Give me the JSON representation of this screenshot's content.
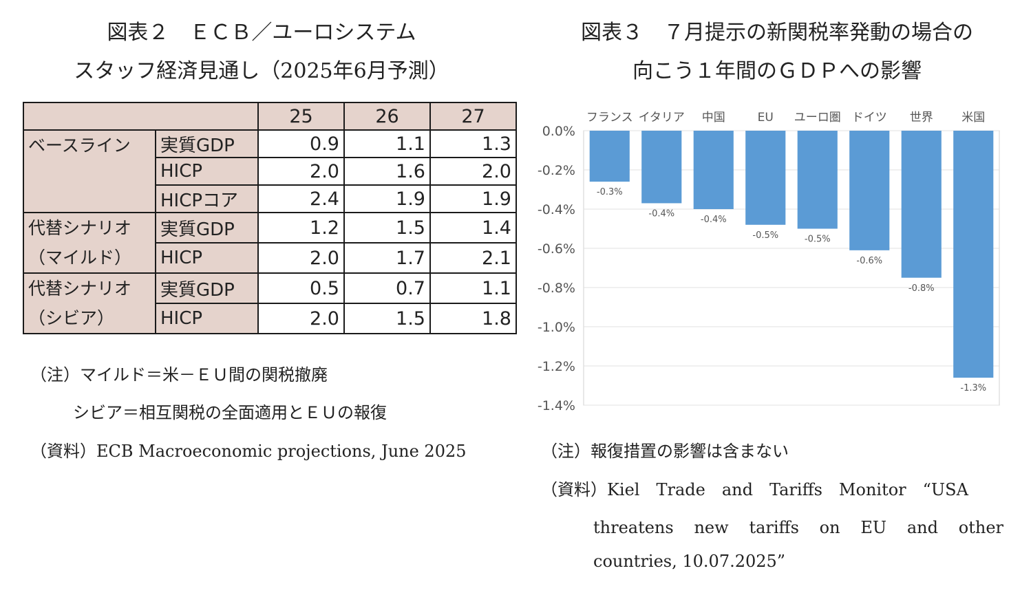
{
  "figure2": {
    "title_line1": "図表２　ＥＣＢ／ユーロシステム",
    "title_line2": "スタッフ経済見通し（2025年6月予測）",
    "header": [
      "25",
      "26",
      "27"
    ],
    "scenarios": [
      {
        "name_line1": "ベースライン",
        "name_line2": "",
        "rows": [
          {
            "indicator": "実質GDP",
            "values": [
              "0.9",
              "1.1",
              "1.3"
            ]
          },
          {
            "indicator": "HICP",
            "values": [
              "2.0",
              "1.6",
              "2.0"
            ]
          },
          {
            "indicator": "HICPコア",
            "values": [
              "2.4",
              "1.9",
              "1.9"
            ]
          }
        ]
      },
      {
        "name_line1": "代替シナリオ",
        "name_line2": "（マイルド）",
        "rows": [
          {
            "indicator": "実質GDP",
            "values": [
              "1.2",
              "1.5",
              "1.4"
            ]
          },
          {
            "indicator": "HICP",
            "values": [
              "2.0",
              "1.7",
              "2.1"
            ]
          }
        ]
      },
      {
        "name_line1": "代替シナリオ",
        "name_line2": "（シビア）",
        "rows": [
          {
            "indicator": "実質GDP",
            "values": [
              "0.5",
              "0.7",
              "1.1"
            ]
          },
          {
            "indicator": "HICP",
            "values": [
              "2.0",
              "1.5",
              "1.8"
            ]
          }
        ]
      }
    ],
    "note1": "（注）マイルド＝米－ＥＵ間の関税撤廃",
    "note2": "シビア＝相互関税の全面適用とＥＵの報復",
    "source": "（資料）ECB Macroeconomic projections, June 2025"
  },
  "figure3": {
    "title_line1": "図表３　７月提示の新関税率発動の場合の",
    "title_line2": "向こう１年間のＧＤＰへの影響",
    "note": "（注）報復措置の影響は含まない",
    "source_line1": "（資料）Kiel　Trade　and　Tariffs　Monitor　“USA",
    "source_line2": "threatens　new　tariffs　on　EU　and　other",
    "source_line3": "countries, 10.07.2025”"
  },
  "chart_data": {
    "type": "bar",
    "categories": [
      "フランス",
      "イタリア",
      "中国",
      "EU",
      "ユーロ圏",
      "ドイツ",
      "世界",
      "米国"
    ],
    "values": [
      -0.26,
      -0.37,
      -0.4,
      -0.48,
      -0.5,
      -0.61,
      -0.75,
      -1.26
    ],
    "data_labels": [
      "-0.3%",
      "-0.4%",
      "-0.4%",
      "-0.5%",
      "-0.5%",
      "-0.6%",
      "-0.8%",
      "-1.3%"
    ],
    "yticks": [
      "0.0%",
      "-0.2%",
      "-0.4%",
      "-0.6%",
      "-0.8%",
      "-1.0%",
      "-1.2%",
      "-1.4%"
    ],
    "ylim": [
      -1.4,
      0
    ],
    "grid": true,
    "bar_color": "#5b9bd5",
    "category_axis": "top"
  }
}
